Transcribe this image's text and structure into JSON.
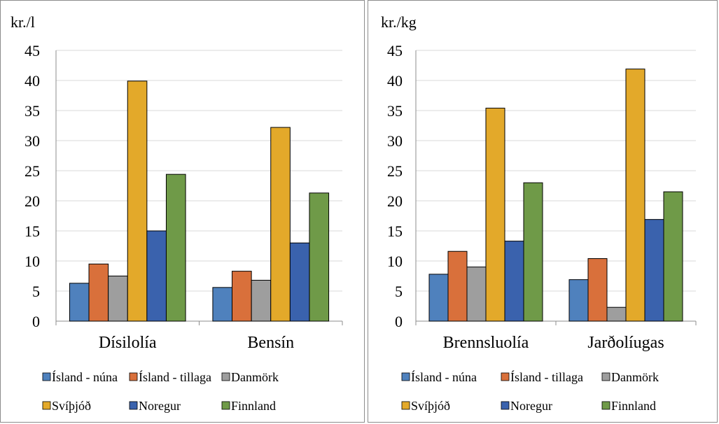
{
  "legend": {
    "rows": [
      [
        "Ísland - núna",
        "Ísland - tillaga",
        "Danmörk"
      ],
      [
        "Svíþjóð",
        "Noregur",
        "Finnland"
      ]
    ]
  },
  "chart_data": [
    {
      "type": "bar",
      "title": "",
      "ylabel": "kr./l",
      "xlabel": "",
      "ylim": [
        0,
        45
      ],
      "yticks": [
        0,
        5,
        10,
        15,
        20,
        25,
        30,
        35,
        40,
        45
      ],
      "grid": true,
      "legend_position": "bottom",
      "categories": [
        "Dísilolía",
        "Bensín"
      ],
      "series": [
        {
          "name": "Ísland - núna",
          "color": "#4f81bd",
          "values": [
            6.3,
            5.6
          ]
        },
        {
          "name": "Ísland - tillaga",
          "color": "#d9703b",
          "values": [
            9.5,
            8.3
          ]
        },
        {
          "name": "Danmörk",
          "color": "#9e9e9e",
          "values": [
            7.5,
            6.8
          ]
        },
        {
          "name": "Svíþjóð",
          "color": "#e3a92a",
          "values": [
            39.9,
            32.2
          ]
        },
        {
          "name": "Noregur",
          "color": "#3a62ad",
          "values": [
            15.0,
            13.0
          ]
        },
        {
          "name": "Finnland",
          "color": "#6f9a48",
          "values": [
            24.4,
            21.3
          ]
        }
      ]
    },
    {
      "type": "bar",
      "title": "",
      "ylabel": "kr./kg",
      "xlabel": "",
      "ylim": [
        0,
        45
      ],
      "yticks": [
        0,
        5,
        10,
        15,
        20,
        25,
        30,
        35,
        40,
        45
      ],
      "grid": true,
      "legend_position": "bottom",
      "categories": [
        "Brennsluolía",
        "Jarðolíugas"
      ],
      "series": [
        {
          "name": "Ísland - núna",
          "color": "#4f81bd",
          "values": [
            7.8,
            6.9
          ]
        },
        {
          "name": "Ísland - tillaga",
          "color": "#d9703b",
          "values": [
            11.6,
            10.4
          ]
        },
        {
          "name": "Danmörk",
          "color": "#9e9e9e",
          "values": [
            9.0,
            2.3
          ]
        },
        {
          "name": "Svíþjóð",
          "color": "#e3a92a",
          "values": [
            35.4,
            41.9
          ]
        },
        {
          "name": "Noregur",
          "color": "#3a62ad",
          "values": [
            13.3,
            16.9
          ]
        },
        {
          "name": "Finnland",
          "color": "#6f9a48",
          "values": [
            23.0,
            21.5
          ]
        }
      ]
    }
  ]
}
